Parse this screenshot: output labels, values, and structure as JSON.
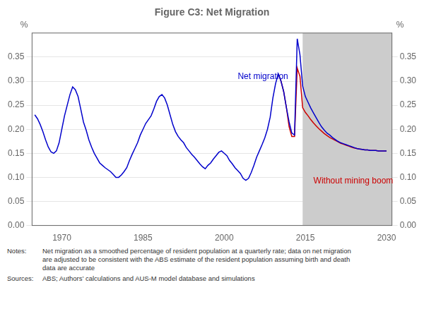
{
  "chart_data": {
    "type": "line",
    "title": "Figure C3: Net Migration",
    "xlim": [
      1964.5,
      2031
    ],
    "xticks": [
      1970,
      1985,
      2000,
      2015,
      2030
    ],
    "ylim": [
      0.0,
      0.4
    ],
    "yticks": [
      {
        "value": 0.0,
        "label": "0.00"
      },
      0.05,
      {
        "value": 0.1,
        "label": "0.10"
      },
      0.15,
      {
        "value": 0.2,
        "label": "0.20"
      },
      0.25,
      {
        "value": 0.3,
        "label": "0.30"
      },
      0.35
    ],
    "y2lim": [
      0.0,
      0.4
    ],
    "y2ticks": [
      {
        "value": 0.0,
        "label": "0.00"
      },
      0.05,
      {
        "value": 0.1,
        "label": "0.10"
      },
      0.15,
      {
        "value": 0.2,
        "label": "0.20"
      },
      0.25,
      {
        "value": 0.3,
        "label": "0.30"
      },
      0.35
    ],
    "y_label": "%",
    "y2_label": "%",
    "grid": "y",
    "legend": false,
    "shade": {
      "from": 2014.5,
      "to": 2031,
      "color": "#cccccc"
    },
    "series": [
      {
        "name": "Net migration",
        "color": "#0000cc",
        "x": [
          1965.0,
          1965.5,
          1966.0,
          1966.5,
          1967.0,
          1967.5,
          1968.0,
          1968.5,
          1969.0,
          1969.5,
          1970.0,
          1970.5,
          1971.0,
          1971.5,
          1972.0,
          1972.5,
          1973.0,
          1973.5,
          1974.0,
          1974.5,
          1975.0,
          1975.5,
          1976.0,
          1976.5,
          1977.0,
          1977.5,
          1978.0,
          1978.5,
          1979.0,
          1979.5,
          1980.0,
          1980.5,
          1981.0,
          1981.5,
          1982.0,
          1982.5,
          1983.0,
          1983.5,
          1984.0,
          1984.5,
          1985.0,
          1985.5,
          1986.0,
          1986.5,
          1987.0,
          1987.5,
          1988.0,
          1988.5,
          1989.0,
          1989.5,
          1990.0,
          1990.5,
          1991.0,
          1991.5,
          1992.0,
          1992.5,
          1993.0,
          1993.5,
          1994.0,
          1994.5,
          1995.0,
          1995.5,
          1996.0,
          1996.5,
          1997.0,
          1997.5,
          1998.0,
          1998.5,
          1999.0,
          1999.5,
          2000.0,
          2000.5,
          2001.0,
          2001.5,
          2002.0,
          2002.5,
          2003.0,
          2003.5,
          2004.0,
          2004.5,
          2005.0,
          2005.5,
          2006.0,
          2006.5,
          2007.0,
          2007.5,
          2008.0,
          2008.5,
          2009.0,
          2009.5,
          2010.0,
          2010.5,
          2011.0,
          2011.5,
          2012.0,
          2012.5,
          2013.0,
          2013.5,
          2014.0,
          2014.5,
          2015.0,
          2015.5,
          2016.0,
          2016.5,
          2017.0,
          2017.5,
          2018.0,
          2018.5,
          2019.0,
          2019.5,
          2020.0,
          2020.5,
          2021.0,
          2021.5,
          2022.0,
          2022.5,
          2023.0,
          2023.5,
          2024.0,
          2024.5,
          2025.0,
          2025.5,
          2026.0,
          2026.5,
          2027.0,
          2027.5,
          2028.0,
          2028.5,
          2029.0,
          2029.5,
          2030.0
        ],
        "values": [
          0.23,
          0.222,
          0.21,
          0.195,
          0.178,
          0.163,
          0.153,
          0.15,
          0.155,
          0.172,
          0.2,
          0.228,
          0.25,
          0.272,
          0.288,
          0.282,
          0.268,
          0.242,
          0.215,
          0.198,
          0.178,
          0.163,
          0.15,
          0.14,
          0.13,
          0.125,
          0.12,
          0.116,
          0.112,
          0.106,
          0.1,
          0.1,
          0.105,
          0.112,
          0.12,
          0.135,
          0.148,
          0.16,
          0.172,
          0.188,
          0.2,
          0.212,
          0.22,
          0.228,
          0.242,
          0.258,
          0.268,
          0.272,
          0.265,
          0.25,
          0.23,
          0.21,
          0.195,
          0.185,
          0.178,
          0.172,
          0.162,
          0.155,
          0.148,
          0.142,
          0.135,
          0.128,
          0.122,
          0.118,
          0.125,
          0.13,
          0.138,
          0.145,
          0.152,
          0.155,
          0.15,
          0.145,
          0.135,
          0.128,
          0.12,
          0.114,
          0.108,
          0.098,
          0.094,
          0.098,
          0.11,
          0.125,
          0.142,
          0.155,
          0.168,
          0.182,
          0.2,
          0.225,
          0.265,
          0.295,
          0.315,
          0.3,
          0.278,
          0.245,
          0.215,
          0.192,
          0.188,
          0.388,
          0.355,
          0.29,
          0.268,
          0.256,
          0.244,
          0.234,
          0.224,
          0.214,
          0.205,
          0.198,
          0.192,
          0.188,
          0.183,
          0.179,
          0.175,
          0.172,
          0.17,
          0.168,
          0.166,
          0.164,
          0.162,
          0.16,
          0.159,
          0.158,
          0.157,
          0.157,
          0.156,
          0.156,
          0.156,
          0.155,
          0.155,
          0.155,
          0.155
        ]
      },
      {
        "name": "Without mining boom",
        "color": "#cc0000",
        "x": [
          2010.0,
          2010.5,
          2011.0,
          2011.5,
          2012.0,
          2012.5,
          2013.0,
          2013.5,
          2014.0,
          2014.5,
          2015.0,
          2015.5,
          2016.0,
          2016.5,
          2017.0,
          2017.5,
          2018.0,
          2018.5,
          2019.0,
          2019.5,
          2020.0,
          2020.5,
          2021.0,
          2021.5,
          2022.0,
          2022.5,
          2023.0,
          2023.5,
          2024.0,
          2024.5,
          2025.0,
          2025.5,
          2026.0,
          2026.5,
          2027.0,
          2027.5,
          2028.0,
          2028.5,
          2029.0,
          2029.5,
          2030.0
        ],
        "values": [
          0.315,
          0.3,
          0.278,
          0.245,
          0.205,
          0.185,
          0.185,
          0.327,
          0.31,
          0.245,
          0.235,
          0.228,
          0.22,
          0.213,
          0.207,
          0.201,
          0.196,
          0.191,
          0.187,
          0.183,
          0.18,
          0.177,
          0.174,
          0.171,
          0.169,
          0.167,
          0.165,
          0.163,
          0.161,
          0.16,
          0.159,
          0.158,
          0.157,
          0.157,
          0.156,
          0.156,
          0.156,
          0.155,
          0.155,
          0.155,
          0.155
        ]
      }
    ],
    "annotations": [
      {
        "text": "Net migration",
        "x": 2002.5,
        "y": 0.305,
        "color": "#0000cc"
      },
      {
        "text": "Without mining boom",
        "x": 2016.5,
        "y": 0.088,
        "color": "#cc0000"
      }
    ],
    "footnotes": [
      {
        "label": "Notes:",
        "lines": [
          "Net migration as a smoothed percentage of resident population at a quarterly rate; data on net migration",
          "are adjusted to be consistent with the ABS estimate of the resident population assuming birth and death",
          "data are accurate"
        ]
      },
      {
        "label": "Sources:",
        "lines": [
          "ABS; Authors’ calculations and AUS-M model database and simulations"
        ]
      }
    ]
  }
}
